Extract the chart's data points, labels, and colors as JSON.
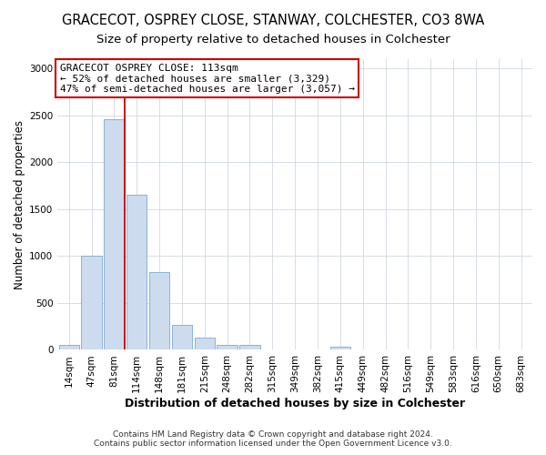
{
  "title": "GRACECOT, OSPREY CLOSE, STANWAY, COLCHESTER, CO3 8WA",
  "subtitle": "Size of property relative to detached houses in Colchester",
  "xlabel": "Distribution of detached houses by size in Colchester",
  "ylabel": "Number of detached properties",
  "footer_line1": "Contains HM Land Registry data © Crown copyright and database right 2024.",
  "footer_line2": "Contains public sector information licensed under the Open Government Licence v3.0.",
  "categories": [
    "14sqm",
    "47sqm",
    "81sqm",
    "114sqm",
    "148sqm",
    "181sqm",
    "215sqm",
    "248sqm",
    "282sqm",
    "315sqm",
    "349sqm",
    "382sqm",
    "415sqm",
    "449sqm",
    "482sqm",
    "516sqm",
    "549sqm",
    "583sqm",
    "616sqm",
    "650sqm",
    "683sqm"
  ],
  "values": [
    55,
    1000,
    2460,
    1650,
    830,
    270,
    130,
    55,
    50,
    0,
    0,
    0,
    35,
    0,
    0,
    0,
    0,
    0,
    0,
    0,
    0
  ],
  "bar_color": "#ccdcee",
  "bar_edge_color": "#7aaad0",
  "vline_color": "#cc0000",
  "vline_x_index": 2,
  "annotation_text": "GRACECOT OSPREY CLOSE: 113sqm\n← 52% of detached houses are smaller (3,329)\n47% of semi-detached houses are larger (3,057) →",
  "annotation_box_facecolor": "#ffffff",
  "annotation_box_edgecolor": "#cc0000",
  "ylim": [
    0,
    3100
  ],
  "yticks": [
    0,
    500,
    1000,
    1500,
    2000,
    2500,
    3000
  ],
  "bg_color": "#ffffff",
  "plot_bg_color": "#ffffff",
  "grid_color": "#d0d8e0",
  "title_fontsize": 10.5,
  "subtitle_fontsize": 9.5,
  "xlabel_fontsize": 9,
  "ylabel_fontsize": 8.5,
  "tick_fontsize": 7.5,
  "annot_fontsize": 8
}
